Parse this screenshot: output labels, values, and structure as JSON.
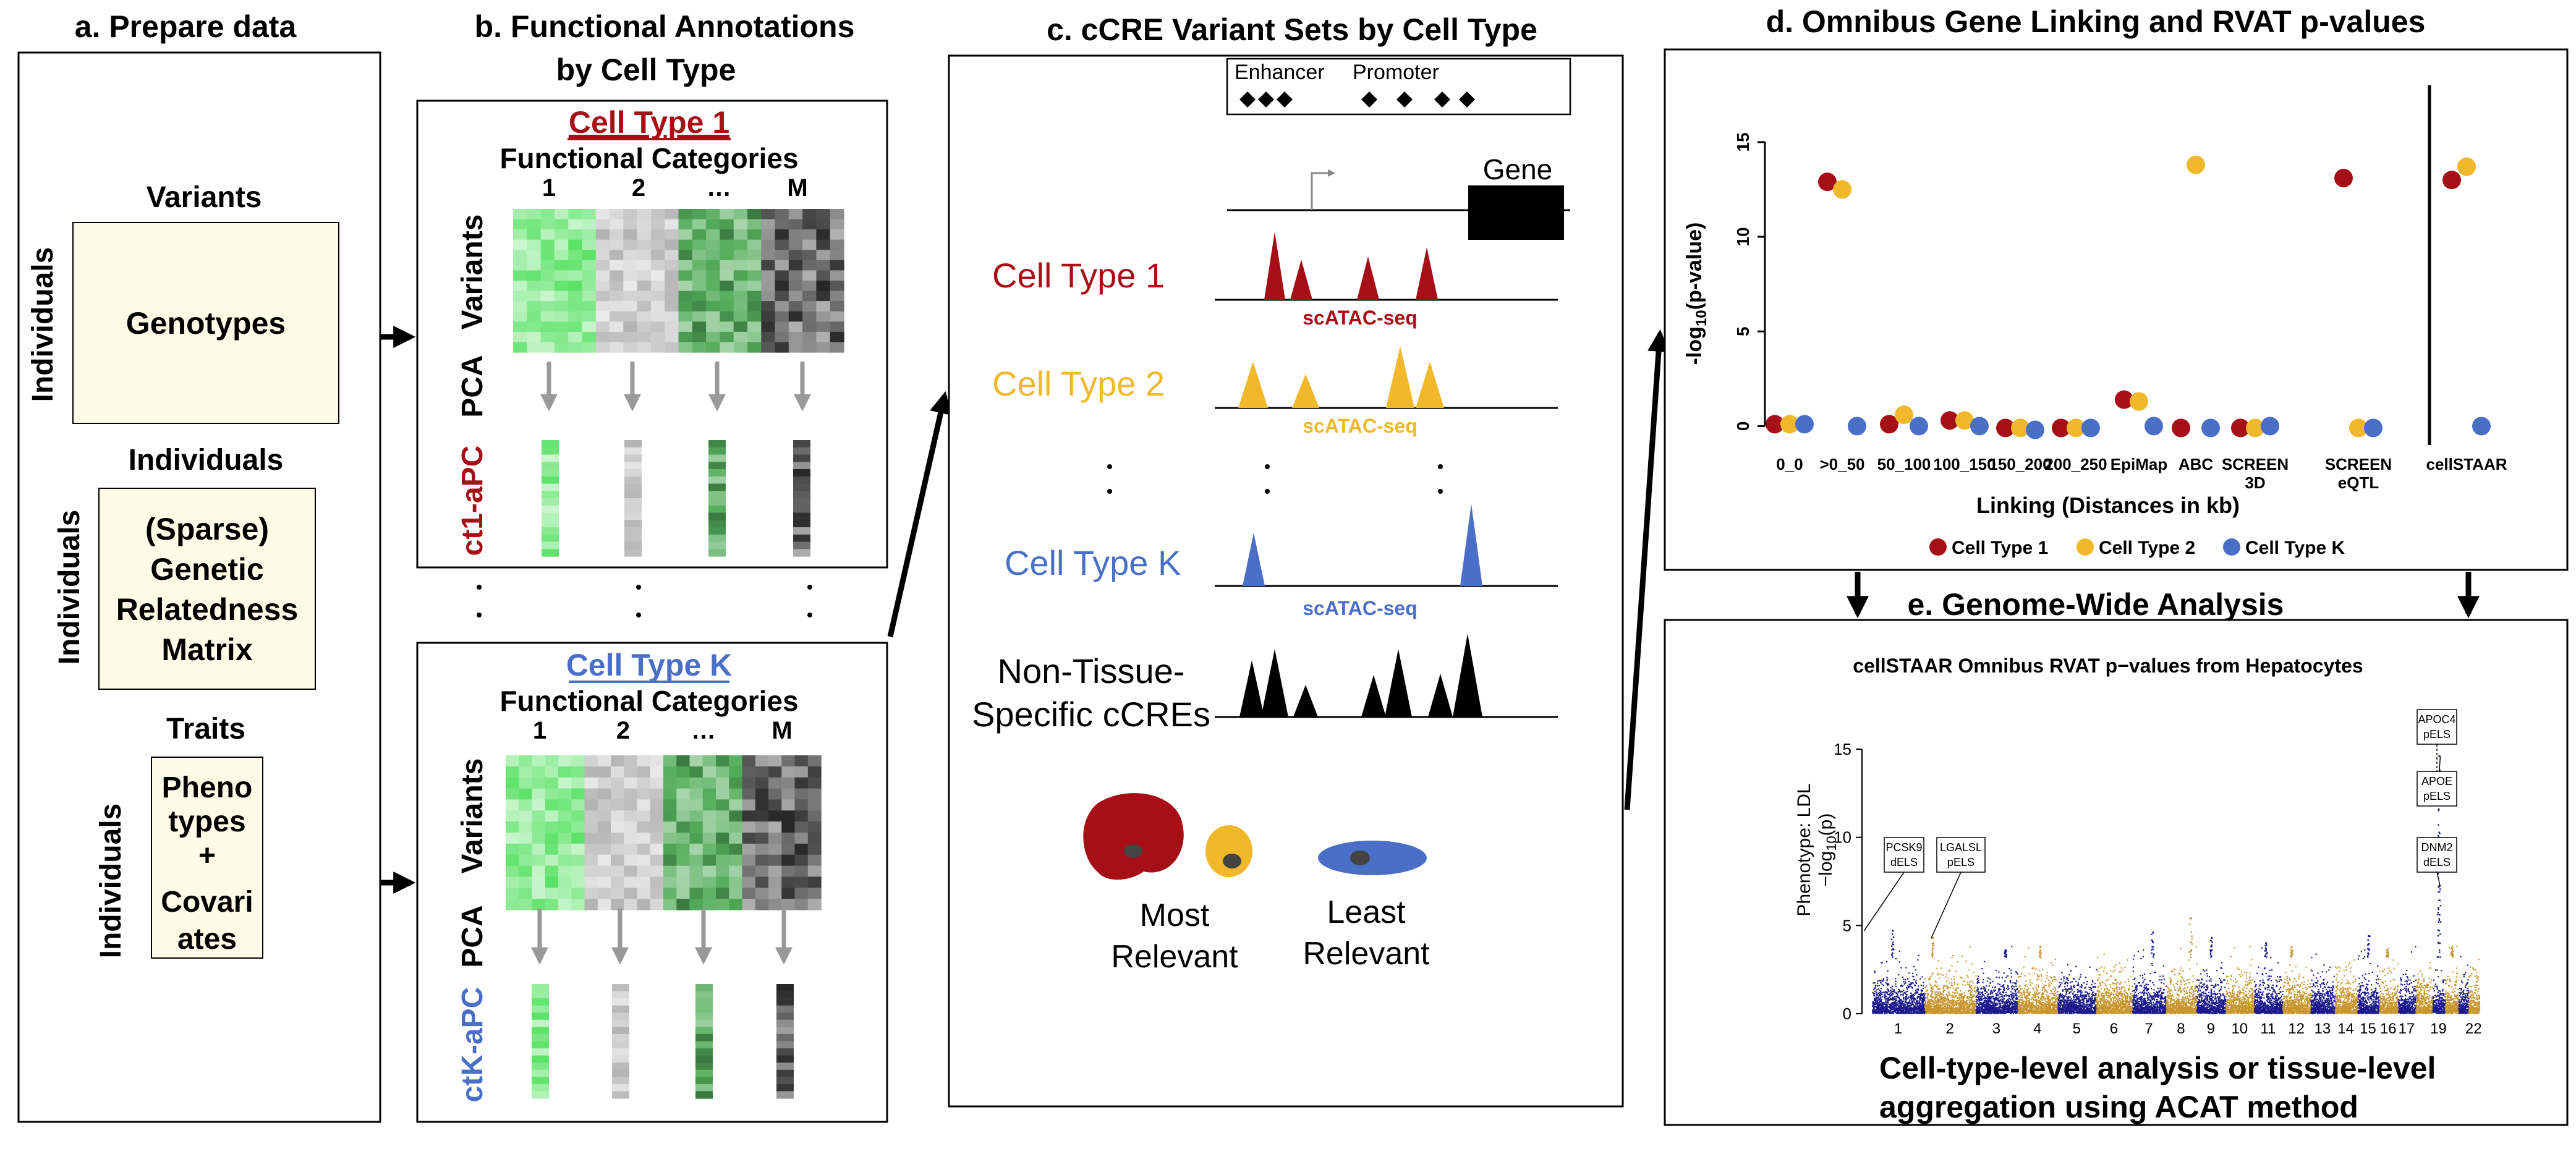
{
  "panels": {
    "a": {
      "title": "a. Prepare data",
      "variants_label": "Variants",
      "individuals_label": "Individuals",
      "genotypes": "Genotypes",
      "grm_individuals_label": "Individuals",
      "grm_lines": [
        "(Sparse)",
        "Genetic",
        "Relatedness",
        "Matrix"
      ],
      "traits_label": "Traits",
      "pheno_lines": [
        "Pheno",
        "types",
        "+",
        "Covari",
        "ates"
      ]
    },
    "b": {
      "title_lines": [
        "b. Functional Annotations",
        "by Cell Type"
      ],
      "ct1": {
        "name": "Cell Type 1",
        "categories_label": "Functional Categories",
        "category_labels": [
          "1",
          "2",
          "…",
          "M"
        ],
        "variants_label": "Variants",
        "pca_label": "PCA",
        "apc_label": "ct1-aPC"
      },
      "ctk": {
        "name": "Cell Type K",
        "categories_label": "Functional Categories",
        "category_labels": [
          "1",
          "2",
          "…",
          "M"
        ],
        "variants_label": "Variants",
        "pca_label": "PCA",
        "apc_label": "ctK-aPC"
      }
    },
    "c": {
      "title": "c. cCRE Variant Sets by Cell Type",
      "legend_enhancer": "Enhancer",
      "legend_promoter": "Promoter",
      "gene_label": "Gene",
      "cell_type_1": "Cell Type 1",
      "cell_type_2": "Cell Type 2",
      "cell_type_k": "Cell Type K",
      "track_label": "scATAC-seq",
      "non_tissue_lines": [
        "Non-Tissue-",
        "Specific cCREs"
      ],
      "most_relevant_lines": [
        "Most",
        "Relevant"
      ],
      "least_relevant_lines": [
        "Least",
        "Relevant"
      ]
    },
    "d": {
      "title": "d. Omnibus Gene Linking and RVAT p-values",
      "ylabel_prefix": "-log",
      "ylabel_sub": "10",
      "ylabel_suffix": "(p-value)",
      "xlabel": "Linking (Distances in kb)",
      "legend": [
        "Cell Type 1",
        "Cell Type 2",
        "Cell Type K"
      ]
    },
    "e": {
      "title": "e. Genome-Wide Analysis",
      "plot_title": "cellSTAAR Omnibus RVAT p−values from Hepatocytes",
      "ylabel_line1": "Phenotype: LDL",
      "ylabel_line2_prefix": "−log",
      "ylabel_line2_sub": "10",
      "ylabel_line2_suffix": "(p)",
      "annotations": [
        {
          "gene": "PCSK9",
          "type": "dELS"
        },
        {
          "gene": "LGALSL",
          "type": "pELS"
        },
        {
          "gene": "APOC4",
          "type": "pELS"
        },
        {
          "gene": "APOE",
          "type": "pELS"
        },
        {
          "gene": "DNM2",
          "type": "dELS"
        }
      ],
      "footer_lines": [
        "Cell-type-level analysis or tissue-level",
        "aggregation using ACAT method"
      ]
    }
  },
  "colors": {
    "cell_type_1": "#a50f15",
    "cell_type_2": "#f0b82a",
    "cell_type_k": "#4a6fc7",
    "manhattan_odd": "#1a1a8c",
    "manhattan_even": "#c8962e",
    "ct_k_text": "#4a6fc7"
  },
  "chart_data": [
    {
      "type": "scatter",
      "title": "",
      "xlabel": "Linking (Distances in kb)",
      "ylabel": "-log10(p-value)",
      "ylim": [
        -1,
        18
      ],
      "yticks": [
        0,
        5,
        10,
        15
      ],
      "categories": [
        "0_0",
        ">0_50",
        "50_100",
        "100_150",
        "150_200",
        "200_250",
        "EpiMap",
        "ABC",
        "SCREEN 3D",
        "SCREEN eQTL",
        "cellSTAAR"
      ],
      "series": [
        {
          "name": "Cell Type 1",
          "values": [
            0.1,
            12.9,
            0.1,
            0.3,
            -0.1,
            -0.1,
            1.4,
            -0.1,
            -0.1,
            13.1,
            13.0
          ]
        },
        {
          "name": "Cell Type 2",
          "values": [
            0.1,
            12.5,
            0.6,
            0.3,
            -0.1,
            -0.1,
            1.3,
            13.8,
            -0.1,
            -0.1,
            13.7
          ]
        },
        {
          "name": "Cell Type K",
          "values": [
            0.1,
            0.0,
            0.0,
            0.0,
            -0.2,
            -0.1,
            0.0,
            -0.1,
            0.0,
            -0.1,
            0.0
          ]
        }
      ],
      "legend": "bottom",
      "grid": false
    },
    {
      "type": "scatter",
      "title": "cellSTAAR Omnibus RVAT p−values from Hepatocytes",
      "xlabel": "",
      "ylabel": "Phenotype: LDL −log10(p)",
      "ylim": [
        0,
        17
      ],
      "yticks": [
        0,
        5,
        10,
        15
      ],
      "x_tick_labels": [
        "1",
        "2",
        "3",
        "4",
        "5",
        "6",
        "7",
        "8",
        "9",
        "10",
        "11",
        "12",
        "13",
        "14",
        "15",
        "16",
        "17",
        "19",
        "22"
      ],
      "chromosomes": [
        "1",
        "2",
        "3",
        "4",
        "5",
        "6",
        "7",
        "8",
        "9",
        "10",
        "11",
        "12",
        "13",
        "14",
        "15",
        "16",
        "17",
        "18",
        "19",
        "20",
        "21",
        "22"
      ],
      "chromosome_sizes": [
        248,
        242,
        198,
        190,
        181,
        171,
        159,
        145,
        138,
        134,
        135,
        133,
        114,
        107,
        102,
        90,
        83,
        80,
        59,
        64,
        47,
        51
      ],
      "peaks": [
        {
          "chr": "1",
          "value": 4.7,
          "label": "PCSK9 dELS"
        },
        {
          "chr": "2",
          "value": 4.3,
          "label": "LGALSL pELS"
        },
        {
          "chr": "19",
          "value": 14.6,
          "label": "APOC4 pELS"
        },
        {
          "chr": "19",
          "value": 13.8,
          "label": "APOE pELS"
        },
        {
          "chr": "19",
          "value": 7.2,
          "label": "DNM2 dELS"
        }
      ],
      "grid": false
    }
  ]
}
